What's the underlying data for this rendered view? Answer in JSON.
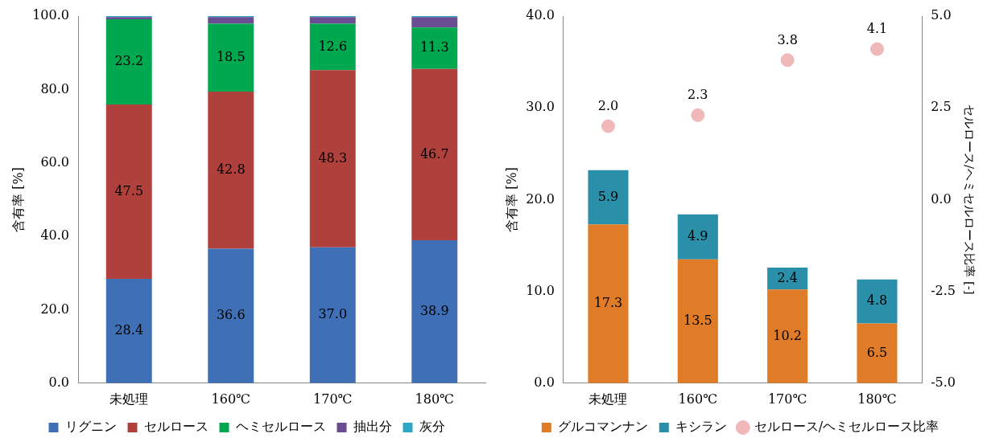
{
  "chart_data": [
    {
      "type": "bar",
      "stacked": true,
      "categories": [
        "未処理",
        "160℃",
        "170℃",
        "180℃"
      ],
      "ylabel": "含有率 [%]",
      "ylim": [
        0,
        100
      ],
      "yticks": [
        {
          "value": 0,
          "label": "0.0"
        },
        {
          "value": 20,
          "label": "20.0"
        },
        {
          "value": 40,
          "label": "40.0"
        },
        {
          "value": 60,
          "label": "60.0"
        },
        {
          "value": 80,
          "label": "80.0"
        },
        {
          "value": 100,
          "label": "100.0"
        }
      ],
      "grid": false,
      "legend": "bottom",
      "series": [
        {
          "name": "リグニン",
          "color": "#3f6fb5",
          "values": [
            28.4,
            36.6,
            37.0,
            38.9
          ],
          "value_labels": [
            "28.4",
            "36.6",
            "37.0",
            "38.9"
          ]
        },
        {
          "name": "セルロース",
          "color": "#b0403c",
          "values": [
            47.5,
            42.8,
            48.3,
            46.7
          ],
          "value_labels": [
            "47.5",
            "42.8",
            "48.3",
            "46.7"
          ]
        },
        {
          "name": "ヘミセルロース",
          "color": "#00a850",
          "values": [
            23.2,
            18.5,
            12.6,
            11.3
          ],
          "value_labels": [
            "23.2",
            "18.5",
            "12.6",
            "11.3"
          ]
        },
        {
          "name": "抽出分",
          "color": "#6a4c93",
          "values": [
            0.6,
            1.8,
            1.8,
            2.8
          ]
        },
        {
          "name": "灰分",
          "color": "#2ea6c6",
          "values": [
            0.3,
            0.3,
            0.3,
            0.3
          ]
        }
      ]
    },
    {
      "type": "bar",
      "stacked": true,
      "categories": [
        "未処理",
        "160℃",
        "170℃",
        "180℃"
      ],
      "ylabel": "含有率 [%]",
      "y2label": "セルロース/ヘミセルロース比率 [-]",
      "ylim": [
        0,
        40
      ],
      "yticks": [
        {
          "value": 0,
          "label": "0.0"
        },
        {
          "value": 10,
          "label": "10.0"
        },
        {
          "value": 20,
          "label": "20.0"
        },
        {
          "value": 30,
          "label": "30.0"
        },
        {
          "value": 40,
          "label": "40.0"
        }
      ],
      "y2lim": [
        -5,
        5
      ],
      "y2ticks": [
        {
          "value": -5,
          "label": "-5.0"
        },
        {
          "value": -2.5,
          "label": "-2.5"
        },
        {
          "value": 0,
          "label": "0.0"
        },
        {
          "value": 2.5,
          "label": "2.5"
        },
        {
          "value": 5,
          "label": "5.0"
        }
      ],
      "grid": false,
      "legend": "bottom",
      "marker": "circle",
      "series": [
        {
          "name": "グルコマンナン",
          "color": "#e07b28",
          "values": [
            17.3,
            13.5,
            10.2,
            6.5
          ],
          "value_labels": [
            "17.3",
            "13.5",
            "10.2",
            "6.5"
          ]
        },
        {
          "name": "キシラン",
          "color": "#2a8fa8",
          "values": [
            5.9,
            4.9,
            2.4,
            4.8
          ],
          "value_labels": [
            "5.9",
            "4.9",
            "2.4",
            "4.8"
          ]
        },
        {
          "name": "セルロース/ヘミセルロース比率",
          "type": "scatter",
          "axis": "y2",
          "color": "#f0b8b8",
          "x": [
            "未処理",
            "160℃",
            "170℃",
            "180℃"
          ],
          "values": [
            2.0,
            2.3,
            3.8,
            4.1
          ],
          "value_labels": [
            "2.0",
            "2.3",
            "3.8",
            "4.1"
          ]
        }
      ]
    }
  ]
}
